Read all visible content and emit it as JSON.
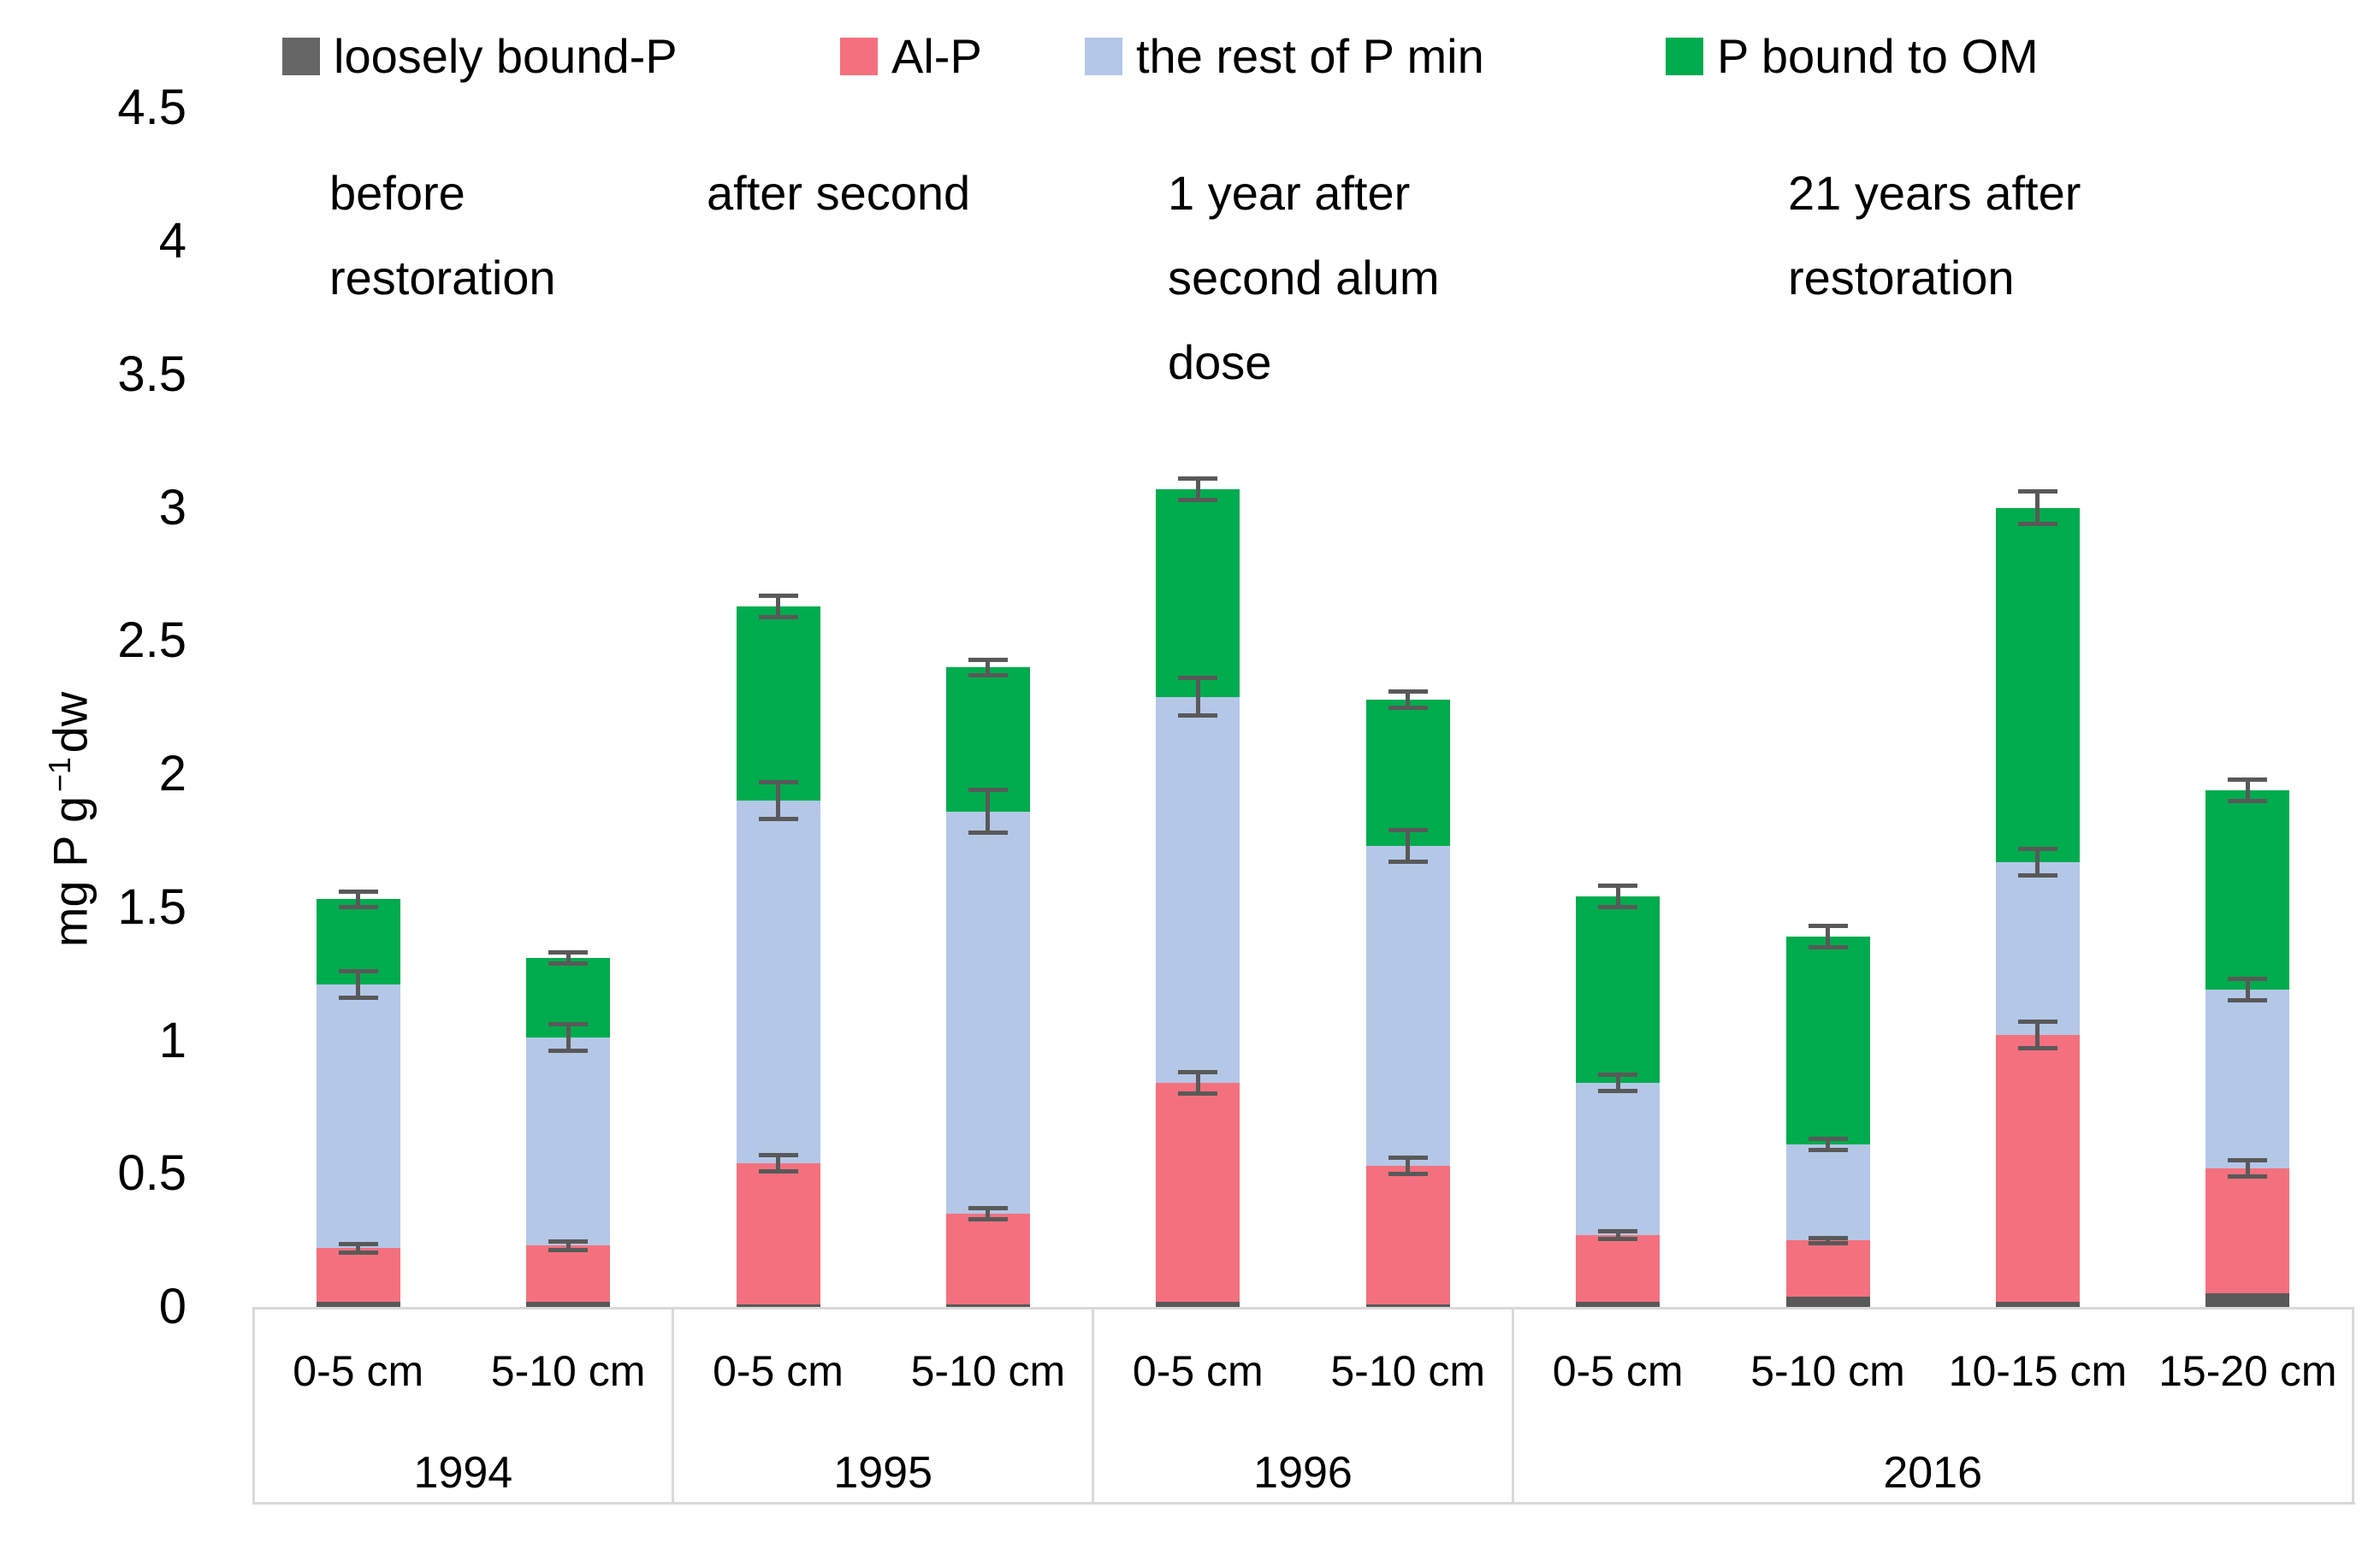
{
  "chart_data": {
    "type": "bar",
    "stacked": true,
    "title": "",
    "ylabel": "mg P g −1 dw",
    "ylabel_parts": {
      "prefix": "mg P g",
      "sup": "−1",
      "suffix": "dw"
    },
    "ylim": [
      0,
      4.5
    ],
    "ytick_step": 0.5,
    "yticks": [
      "0",
      "0.5",
      "1",
      "1.5",
      "2",
      "2.5",
      "3",
      "3.5",
      "4",
      "4.5"
    ],
    "grid": false,
    "legend_position": "top",
    "categories": [
      "0-5 cm",
      "5-10 cm",
      "0-5 cm",
      "5-10 cm",
      "0-5 cm",
      "5-10 cm",
      "0-5 cm",
      "5-10 cm",
      "10-15 cm",
      "15-20 cm"
    ],
    "groups": [
      {
        "label": "1994",
        "span": 2
      },
      {
        "label": "1995",
        "span": 2
      },
      {
        "label": "1996",
        "span": 2
      },
      {
        "label": "2016",
        "span": 4
      }
    ],
    "series": [
      {
        "name": "loosely bound-P",
        "color": "#595959",
        "values": [
          0.02,
          0.02,
          0.01,
          0.01,
          0.02,
          0.01,
          0.02,
          0.04,
          0.02,
          0.05
        ]
      },
      {
        "name": "Al-P",
        "color": "#F4707E",
        "values": [
          0.2,
          0.21,
          0.53,
          0.34,
          0.82,
          0.52,
          0.25,
          0.21,
          1.0,
          0.47
        ],
        "errors": [
          0.015,
          0.015,
          0.03,
          0.02,
          0.04,
          0.03,
          0.015,
          0.01,
          0.05,
          0.03
        ]
      },
      {
        "name": "the rest of P min",
        "color": "#B4C7E7",
        "values": [
          0.99,
          0.78,
          1.36,
          1.51,
          1.45,
          1.2,
          0.57,
          0.36,
          0.65,
          0.67
        ],
        "errors": [
          0.05,
          0.05,
          0.07,
          0.08,
          0.07,
          0.06,
          0.03,
          0.02,
          0.05,
          0.04
        ]
      },
      {
        "name": "P bound to OM",
        "color": "#00AC4E",
        "values": [
          0.32,
          0.3,
          0.73,
          0.54,
          0.78,
          0.55,
          0.7,
          0.78,
          1.33,
          0.75
        ],
        "errors": [
          0.03,
          0.02,
          0.04,
          0.03,
          0.04,
          0.03,
          0.04,
          0.04,
          0.06,
          0.04
        ]
      }
    ],
    "annotations": [
      {
        "lines": [
          "before",
          "restoration"
        ],
        "x": 385
      },
      {
        "lines": [
          "after second"
        ],
        "x": 826
      },
      {
        "lines": [
          "1 year after",
          "second alum",
          "dose"
        ],
        "x": 1365
      },
      {
        "lines": [
          "21 years after",
          "restoration"
        ],
        "x": 2090
      }
    ]
  }
}
